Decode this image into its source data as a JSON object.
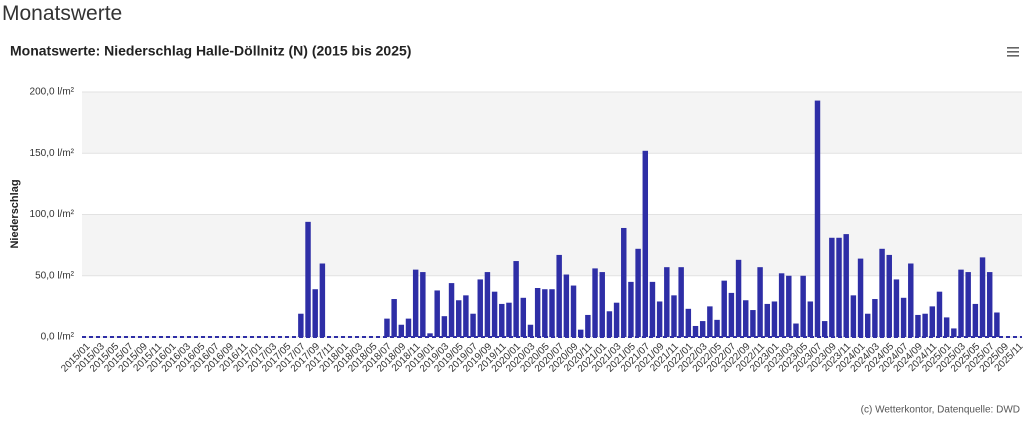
{
  "page_title": "Monatswerte",
  "credits": "(c) Wetterkontor, Datenquelle: DWD",
  "chart_data": {
    "type": "bar",
    "title": "Monatswerte: Niederschlag Halle-Döllnitz (N) (2015 bis 2025)",
    "y_label": "Niederschlag",
    "color": "#2e2ea6",
    "ylim": [
      0,
      200
    ],
    "yticks": [
      {
        "value": 0,
        "label": "0,0 l/m²"
      },
      {
        "value": 50,
        "label": "50,0 l/m²"
      },
      {
        "value": 100,
        "label": "100,0 l/m²"
      },
      {
        "value": 150,
        "label": "150,0 l/m²"
      },
      {
        "value": 200,
        "label": "200,0 l/m²"
      }
    ],
    "grid": true,
    "categories": [
      "2015/01",
      null,
      "2015/03",
      null,
      "2015/05",
      null,
      "2015/07",
      null,
      "2015/09",
      null,
      "2015/11",
      null,
      "2016/01",
      null,
      "2016/03",
      null,
      "2016/05",
      null,
      "2016/07",
      null,
      "2016/09",
      null,
      "2016/11",
      null,
      "2017/01",
      null,
      "2017/03",
      null,
      "2017/05",
      null,
      "2017/07",
      null,
      "2017/09",
      null,
      "2017/11",
      null,
      "2018/01",
      null,
      "2018/03",
      null,
      "2018/05",
      null,
      "2018/07",
      null,
      "2018/09",
      null,
      "2018/11",
      null,
      "2019/01",
      null,
      "2019/03",
      null,
      "2019/05",
      null,
      "2019/07",
      null,
      "2019/09",
      null,
      "2019/11",
      null,
      "2020/01",
      null,
      "2020/03",
      null,
      "2020/05",
      null,
      "2020/07",
      null,
      "2020/09",
      null,
      "2020/11",
      null,
      "2021/01",
      null,
      "2021/03",
      null,
      "2021/05",
      null,
      "2021/07",
      null,
      "2021/09",
      null,
      "2021/11",
      null,
      "2022/01",
      null,
      "2022/03",
      null,
      "2022/05",
      null,
      "2022/07",
      null,
      "2022/09",
      null,
      "2022/11",
      null,
      "2023/01",
      null,
      "2023/03",
      null,
      "2023/05",
      null,
      "2023/07",
      null,
      "2023/09",
      null,
      "2023/11",
      null,
      "2024/01",
      null,
      "2024/03",
      null,
      "2024/05",
      null,
      "2024/07",
      null,
      "2024/09",
      null,
      "2024/11",
      null,
      "2025/01",
      null,
      "2025/03",
      null,
      "2025/05",
      null,
      "2025/07",
      null,
      "2025/09",
      null,
      "2025/11"
    ],
    "values": [
      0,
      0,
      0,
      0,
      0,
      0,
      0,
      0,
      0,
      0,
      0,
      0,
      0,
      0,
      0,
      0,
      0,
      0,
      0,
      0,
      0,
      0,
      0,
      0,
      0,
      0,
      0,
      0,
      0,
      0,
      19,
      94,
      39,
      60,
      0,
      0,
      0,
      0,
      0,
      0,
      0,
      0,
      15,
      31,
      10,
      15,
      55,
      53,
      3,
      38,
      17,
      44,
      30,
      34,
      19,
      47,
      53,
      37,
      27,
      28,
      62,
      32,
      10,
      40,
      39,
      39,
      67,
      51,
      42,
      6,
      18,
      56,
      53,
      21,
      28,
      89,
      45,
      72,
      152,
      45,
      29,
      57,
      34,
      57,
      23,
      9,
      13,
      25,
      14,
      46,
      36,
      63,
      30,
      22,
      57,
      27,
      29,
      52,
      50,
      11,
      50,
      29,
      193,
      13,
      81,
      81,
      84,
      34,
      64,
      19,
      31,
      72,
      67,
      47,
      32,
      60,
      18,
      19,
      25,
      37,
      16,
      7,
      55,
      53,
      27,
      65,
      53,
      20,
      0,
      0,
      0
    ]
  }
}
